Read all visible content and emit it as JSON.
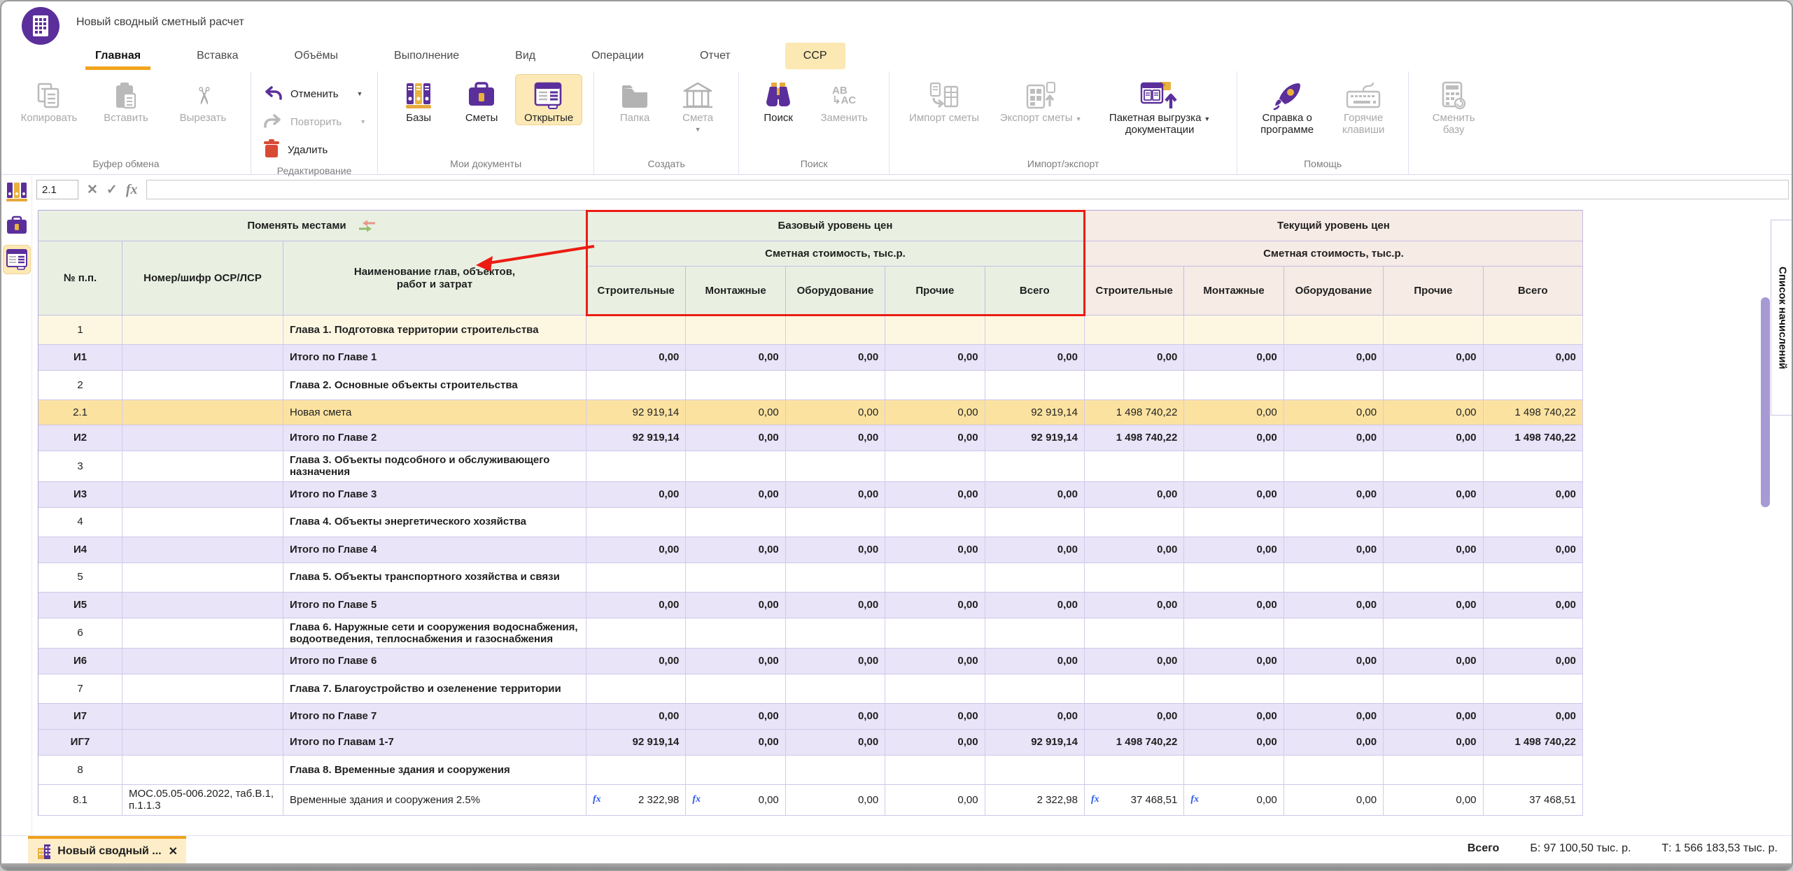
{
  "window": {
    "title": "Новый сводный сметный расчет"
  },
  "tabs": [
    {
      "label": "Главная",
      "state": "active"
    },
    {
      "label": "Вставка",
      "state": "normal"
    },
    {
      "label": "Объёмы",
      "state": "normal"
    },
    {
      "label": "Выполнение",
      "state": "normal"
    },
    {
      "label": "Вид",
      "state": "normal"
    },
    {
      "label": "Операции",
      "state": "normal"
    },
    {
      "label": "Отчет",
      "state": "normal"
    },
    {
      "label": "ССР",
      "state": "highlighted"
    }
  ],
  "ribbon": {
    "groups": [
      {
        "label": "Буфер обмена",
        "buttons": [
          {
            "label": "Копировать"
          },
          {
            "label": "Вставить"
          },
          {
            "label": "Вырезать"
          }
        ]
      },
      {
        "label": "Редактирование",
        "buttons": [
          {
            "label": "Отменить"
          },
          {
            "label": "Повторить"
          },
          {
            "label": "Удалить"
          }
        ]
      },
      {
        "label": "Мои документы",
        "buttons": [
          {
            "label": "Базы"
          },
          {
            "label": "Сметы"
          },
          {
            "label": "Открытые"
          }
        ]
      },
      {
        "label": "Создать",
        "buttons": [
          {
            "label": "Папка"
          },
          {
            "label": "Смета"
          }
        ]
      },
      {
        "label": "Поиск",
        "buttons": [
          {
            "label": "Поиск"
          },
          {
            "label": "Заменить"
          }
        ]
      },
      {
        "label": "Импорт/экспорт",
        "buttons": [
          {
            "label": "Импорт сметы"
          },
          {
            "label": "Экспорт сметы"
          },
          {
            "label_line1": "Пакетная выгрузка",
            "label_line2": "документации"
          }
        ]
      },
      {
        "label": "Помощь",
        "buttons": [
          {
            "label": "Справка о программе"
          },
          {
            "label": "Горячие клавиши"
          }
        ]
      },
      {
        "label": "",
        "buttons": [
          {
            "label": "Сменить базу"
          }
        ]
      }
    ]
  },
  "formula_bar": {
    "cell_ref": "2.1",
    "cancel_icon": "✕",
    "confirm_icon": "✓",
    "fx_label": "fx",
    "input_value": ""
  },
  "side_tab": {
    "label": "Список начислений"
  },
  "table": {
    "swap_header": "Поменять местами",
    "base_header": "Базовый уровень цен",
    "current_header": "Текущий уровень цен",
    "cost_subheader": "Сметная стоимость, тыс.р.",
    "columns": [
      "№ п.п.",
      "Номер/шифр ОСР/ЛСР",
      "Наименование глав, объектов,\nработ и затрат"
    ],
    "value_columns": [
      "Строительные",
      "Монтажные",
      "Оборудование",
      "Прочие",
      "Всего"
    ],
    "fx_marker": "fx",
    "rows": [
      {
        "num": "1",
        "code": "",
        "kind": "chapter",
        "bg": "cream",
        "name": "Глава 1. Подготовка территории строительства",
        "values": [
          "",
          "",
          "",
          "",
          "",
          "",
          "",
          "",
          "",
          ""
        ]
      },
      {
        "num": "И1",
        "code": "",
        "kind": "total",
        "name": "Итого по Главе 1",
        "values": [
          "0,00",
          "0,00",
          "0,00",
          "0,00",
          "0,00",
          "0,00",
          "0,00",
          "0,00",
          "0,00",
          "0,00"
        ]
      },
      {
        "num": "2",
        "code": "",
        "kind": "chapter",
        "name": "Глава 2. Основные объекты строительства",
        "values": [
          "",
          "",
          "",
          "",
          "",
          "",
          "",
          "",
          "",
          ""
        ]
      },
      {
        "num": "2.1",
        "code": "",
        "kind": "item",
        "bg": "amber",
        "name": "Новая смета",
        "values": [
          "92 919,14",
          "0,00",
          "0,00",
          "0,00",
          "92 919,14",
          "1 498 740,22",
          "0,00",
          "0,00",
          "0,00",
          "1 498 740,22"
        ]
      },
      {
        "num": "И2",
        "code": "",
        "kind": "total",
        "name": "Итого по Главе 2",
        "values": [
          "92 919,14",
          "0,00",
          "0,00",
          "0,00",
          "92 919,14",
          "1 498 740,22",
          "0,00",
          "0,00",
          "0,00",
          "1 498 740,22"
        ]
      },
      {
        "num": "3",
        "code": "",
        "kind": "chapter",
        "name": "Глава 3. Объекты подсобного и обслуживающего назначения",
        "values": [
          "",
          "",
          "",
          "",
          "",
          "",
          "",
          "",
          "",
          ""
        ]
      },
      {
        "num": "И3",
        "code": "",
        "kind": "total",
        "name": "Итого по Главе 3",
        "values": [
          "0,00",
          "0,00",
          "0,00",
          "0,00",
          "0,00",
          "0,00",
          "0,00",
          "0,00",
          "0,00",
          "0,00"
        ]
      },
      {
        "num": "4",
        "code": "",
        "kind": "chapter",
        "name": "Глава 4. Объекты энергетического хозяйства",
        "values": [
          "",
          "",
          "",
          "",
          "",
          "",
          "",
          "",
          "",
          ""
        ]
      },
      {
        "num": "И4",
        "code": "",
        "kind": "total",
        "name": "Итого по Главе 4",
        "values": [
          "0,00",
          "0,00",
          "0,00",
          "0,00",
          "0,00",
          "0,00",
          "0,00",
          "0,00",
          "0,00",
          "0,00"
        ]
      },
      {
        "num": "5",
        "code": "",
        "kind": "chapter",
        "name": "Глава 5. Объекты транспортного хозяйства и связи",
        "values": [
          "",
          "",
          "",
          "",
          "",
          "",
          "",
          "",
          "",
          ""
        ]
      },
      {
        "num": "И5",
        "code": "",
        "kind": "total",
        "name": "Итого по Главе 5",
        "values": [
          "0,00",
          "0,00",
          "0,00",
          "0,00",
          "0,00",
          "0,00",
          "0,00",
          "0,00",
          "0,00",
          "0,00"
        ]
      },
      {
        "num": "6",
        "code": "",
        "kind": "chapter",
        "name": "Глава 6. Наружные сети и сооружения водоснабжения, водоотведения, теплоснабжения и газоснабжения",
        "values": [
          "",
          "",
          "",
          "",
          "",
          "",
          "",
          "",
          "",
          ""
        ]
      },
      {
        "num": "И6",
        "code": "",
        "kind": "total",
        "name": "Итого по Главе 6",
        "values": [
          "0,00",
          "0,00",
          "0,00",
          "0,00",
          "0,00",
          "0,00",
          "0,00",
          "0,00",
          "0,00",
          "0,00"
        ]
      },
      {
        "num": "7",
        "code": "",
        "kind": "chapter",
        "name": "Глава 7. Благоустройство и озеленение территории",
        "values": [
          "",
          "",
          "",
          "",
          "",
          "",
          "",
          "",
          "",
          ""
        ]
      },
      {
        "num": "И7",
        "code": "",
        "kind": "total",
        "name": "Итого по Главе 7",
        "values": [
          "0,00",
          "0,00",
          "0,00",
          "0,00",
          "0,00",
          "0,00",
          "0,00",
          "0,00",
          "0,00",
          "0,00"
        ]
      },
      {
        "num": "ИГ7",
        "code": "",
        "kind": "total",
        "name": "Итого по Главам 1-7",
        "values": [
          "92 919,14",
          "0,00",
          "0,00",
          "0,00",
          "92 919,14",
          "1 498 740,22",
          "0,00",
          "0,00",
          "0,00",
          "1 498 740,22"
        ]
      },
      {
        "num": "8",
        "code": "",
        "kind": "chapter",
        "name": "Глава 8. Временные здания и сооружения",
        "values": [
          "",
          "",
          "",
          "",
          "",
          "",
          "",
          "",
          "",
          ""
        ]
      },
      {
        "num": "8.1",
        "code": "МОС.05.05-006.2022, таб.В.1, п.1.1.3",
        "kind": "item",
        "name": "Временные здания и сооружения 2.5%",
        "values": [
          "2 322,98",
          "0,00",
          "0,00",
          "0,00",
          "2 322,98",
          "37 468,51",
          "0,00",
          "0,00",
          "0,00",
          "37 468,51"
        ],
        "fx": [
          true,
          true,
          false,
          false,
          false,
          true,
          true,
          false,
          false,
          false
        ]
      }
    ]
  },
  "bottom": {
    "doc_tab_label": "Новый сводный ...",
    "close_icon": "✕",
    "total_label": "Всего",
    "base_total": "Б: 97 100,50 тыс. р.",
    "current_total": "Т: 1 566 183,53 тыс. р."
  },
  "colors": {
    "accent_purple": "#5b2f9b",
    "accent_orange": "#f2a51c",
    "annotation_red": "#ec1c13",
    "selected_row": "#fbe2a1",
    "total_row": "#e9e4f8",
    "base_header_bg": "#e9f0e2",
    "current_header_bg": "#f6ebe5",
    "fx_blue": "#2e5bea"
  }
}
